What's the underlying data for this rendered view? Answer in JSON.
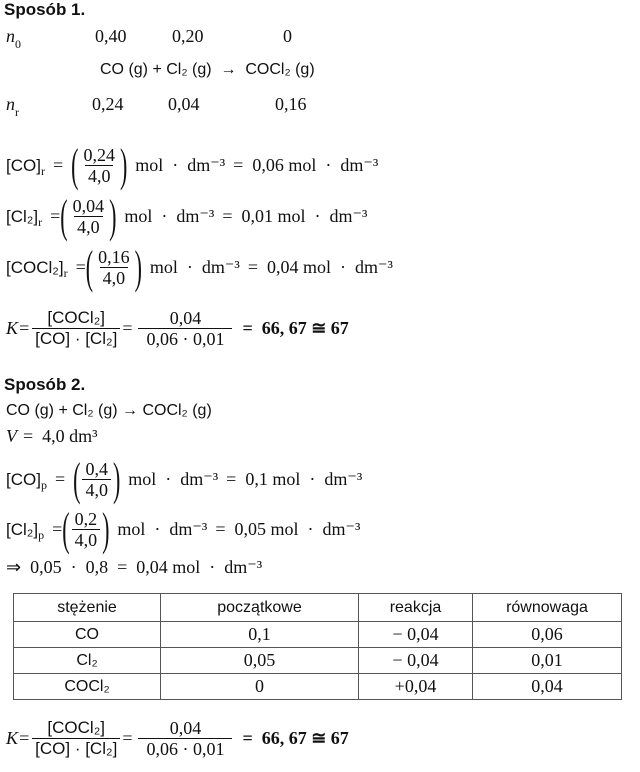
{
  "method1": {
    "title": "Sposób 1.",
    "n0": {
      "label": "n",
      "sub": "0",
      "values": [
        "0,40",
        "0,20",
        "0"
      ]
    },
    "reaction": "CO (g) + Cl₂ (g)  →  COCl₂ (g)",
    "nr": {
      "label": "n",
      "sub": "r",
      "values": [
        "0,24",
        "0,04",
        "0,16"
      ]
    },
    "equations": [
      {
        "lhs": "[CO]",
        "sub": "r",
        "num": "0,24",
        "den": "4,0",
        "unit": "mol  ·  dm⁻³",
        "result": "=  0,06 mol  ·  dm⁻³"
      },
      {
        "lhs": "[Cl₂]",
        "sub": "r",
        "num": "0,04",
        "den": "4,0",
        "unit": "mol  ·  dm⁻³",
        "result": "=  0,01 mol  ·  dm⁻³"
      },
      {
        "lhs": "[COCl₂]",
        "sub": "r",
        "num": "0,16",
        "den": "4,0",
        "unit": "mol  ·  dm⁻³",
        "result": "=  0,04 mol  ·  dm⁻³"
      }
    ],
    "K": {
      "label": "K=",
      "num1": "[COCl₂]",
      "den1": "[CO] · [Cl₂]",
      "num2": "0,04",
      "den2": "0,06 · 0,01",
      "result": "=  66, 67 ≅ 67"
    }
  },
  "method2": {
    "title": "Sposób 2.",
    "reaction": "CO (g) + Cl₂ (g) → COCl₂ (g)",
    "volume": {
      "label": "V",
      "value": "=  4,0 dm³"
    },
    "equations": [
      {
        "lhs": "[CO]",
        "sub": "p",
        "num": "0,4",
        "den": "4,0",
        "unit": "mol  ·  dm⁻³",
        "result": "=  0,1 mol  ·  dm⁻³"
      },
      {
        "lhs": "[Cl₂]",
        "sub": "p",
        "num": "0,2",
        "den": "4,0",
        "unit": "mol  ·  dm⁻³",
        "result": "=  0,05 mol  ·  dm⁻³"
      }
    ],
    "implication": "⇒  0,05  ·  0,8  =  0,04 mol  ·  dm⁻³",
    "table": {
      "headers": [
        "stężenie",
        "początkowe",
        "reakcja",
        "równowaga"
      ],
      "rows": [
        [
          "CO",
          "0,1",
          "− 0,04",
          "0,06"
        ],
        [
          "Cl₂",
          "0,05",
          "− 0,04",
          "0,01"
        ],
        [
          "COCl₂",
          "0",
          "+0,04",
          "0,04"
        ]
      ]
    },
    "K": {
      "label": "K=",
      "num1": "[COCl₂]",
      "den1": "[CO] · [Cl₂]",
      "num2": "0,04",
      "den2": "0,06 · 0,01",
      "result": "=  66, 67 ≅ 67"
    }
  }
}
